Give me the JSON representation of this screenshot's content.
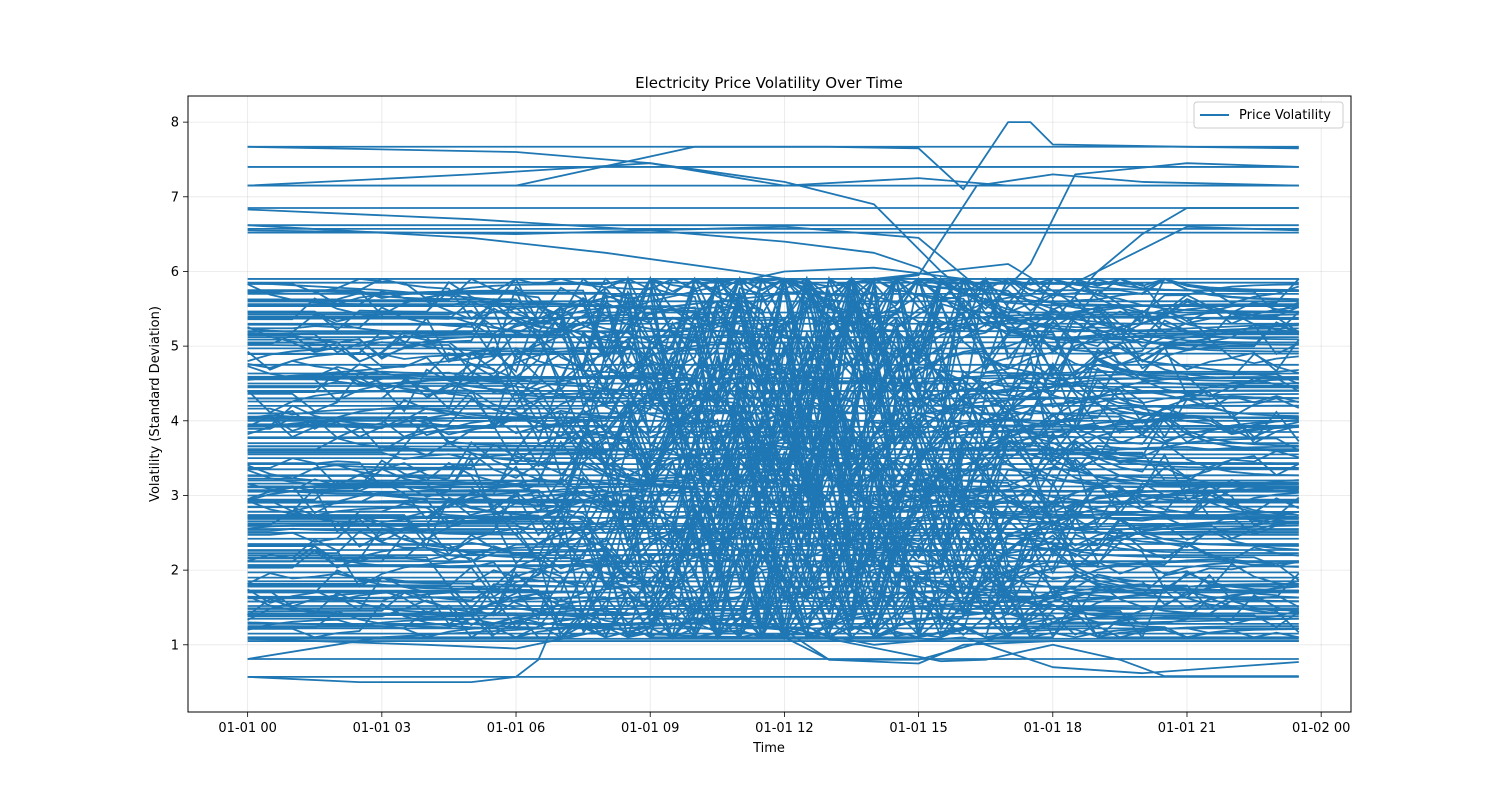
{
  "chart_data": {
    "type": "line",
    "title": "Electricity Price Volatility Over Time",
    "xlabel": "Time",
    "ylabel": "Volatility (Standard Deviation)",
    "x_start": "2023-01-01 00:00",
    "x_end": "2023-01-01 23:30",
    "xlim": [
      "2022-12-31 22:40",
      "2023-01-02 00:40"
    ],
    "ylim": [
      0.1,
      8.35
    ],
    "x_ticks": [
      "01-01 00",
      "01-01 03",
      "01-01 06",
      "01-01 09",
      "01-01 12",
      "01-01 15",
      "01-01 18",
      "01-01 21",
      "01-02 00"
    ],
    "y_ticks": [
      1,
      2,
      3,
      4,
      5,
      6,
      7,
      8
    ],
    "grid": true,
    "legend_position": "top-right",
    "series_color": "#1f77b4",
    "series": [
      {
        "name": "Price Volatility",
        "flat_levels": [
          0.57,
          0.81,
          1.05,
          1.08,
          1.15,
          1.22,
          1.28,
          1.35,
          1.42,
          1.48,
          1.52,
          1.58,
          1.63,
          1.7,
          1.78,
          1.85,
          1.9,
          1.97,
          2.05,
          2.12,
          2.2,
          2.27,
          2.35,
          2.42,
          2.5,
          2.55,
          2.62,
          2.7,
          2.78,
          2.85,
          2.92,
          3.0,
          3.05,
          3.12,
          3.2,
          3.27,
          3.35,
          3.42,
          3.5,
          3.55,
          3.62,
          3.7,
          3.78,
          3.85,
          3.92,
          4.0,
          4.1,
          4.2,
          4.3,
          4.4,
          4.5,
          4.57,
          4.75,
          4.9,
          4.97,
          5.05,
          5.12,
          5.2,
          5.3,
          5.38,
          5.45,
          5.6,
          5.7,
          5.85,
          5.9,
          6.52,
          6.57,
          6.62,
          6.85,
          7.15,
          7.4,
          7.67
        ],
        "excursions": [
          [
            [
              0,
              7.67
            ],
            [
              6,
              7.6
            ],
            [
              9,
              7.45
            ],
            [
              12,
              7.15
            ],
            [
              15,
              7.25
            ],
            [
              17,
              7.15
            ],
            [
              23.5,
              7.15
            ]
          ],
          [
            [
              0,
              7.15
            ],
            [
              6,
              7.15
            ],
            [
              10,
              7.67
            ],
            [
              13,
              7.67
            ],
            [
              15,
              7.65
            ],
            [
              16,
              7.1
            ],
            [
              17,
              8.0
            ],
            [
              17.5,
              8.0
            ],
            [
              18,
              7.7
            ],
            [
              21,
              7.67
            ],
            [
              23.5,
              7.65
            ]
          ],
          [
            [
              0,
              7.15
            ],
            [
              5,
              7.3
            ],
            [
              9,
              7.45
            ],
            [
              12,
              7.2
            ],
            [
              14,
              6.9
            ],
            [
              15.5,
              6.0
            ],
            [
              16.5,
              5.5
            ],
            [
              17.5,
              6.1
            ],
            [
              18.5,
              7.3
            ],
            [
              21,
              7.45
            ],
            [
              23.5,
              7.4
            ]
          ],
          [
            [
              0,
              6.83
            ],
            [
              5,
              6.7
            ],
            [
              9,
              6.55
            ],
            [
              12,
              6.4
            ],
            [
              14,
              6.25
            ],
            [
              15,
              6.05
            ],
            [
              16,
              5.7
            ],
            [
              17,
              5.45
            ],
            [
              18,
              5.7
            ],
            [
              19,
              6.0
            ],
            [
              20,
              6.5
            ],
            [
              21,
              6.85
            ],
            [
              23.5,
              6.85
            ]
          ],
          [
            [
              0,
              6.62
            ],
            [
              5,
              6.45
            ],
            [
              8,
              6.25
            ],
            [
              11,
              6.0
            ],
            [
              13,
              5.8
            ],
            [
              15,
              5.95
            ],
            [
              16.3,
              7.15
            ],
            [
              18,
              7.3
            ],
            [
              20,
              7.2
            ],
            [
              23.5,
              7.15
            ]
          ],
          [
            [
              0,
              6.55
            ],
            [
              6,
              6.5
            ],
            [
              12,
              6.6
            ],
            [
              15,
              6.45
            ],
            [
              16.5,
              5.7
            ],
            [
              17.5,
              5.0
            ],
            [
              19,
              6.0
            ],
            [
              21,
              6.6
            ],
            [
              23.5,
              6.55
            ]
          ],
          [
            [
              0,
              0.57
            ],
            [
              2.5,
              0.5
            ],
            [
              5,
              0.5
            ],
            [
              6,
              0.57
            ],
            [
              6.5,
              0.8
            ],
            [
              7,
              1.5
            ],
            [
              9,
              1.4
            ],
            [
              12,
              1.2
            ],
            [
              13,
              0.8
            ],
            [
              15,
              0.75
            ],
            [
              16,
              1.0
            ],
            [
              18,
              1.05
            ],
            [
              21,
              1.05
            ],
            [
              23.5,
              1.05
            ]
          ],
          [
            [
              0,
              0.81
            ],
            [
              3,
              1.1
            ],
            [
              6,
              1.2
            ],
            [
              9,
              1.3
            ],
            [
              12,
              1.1
            ],
            [
              13,
              0.8
            ],
            [
              15,
              0.8
            ],
            [
              16.5,
              1.05
            ],
            [
              18,
              1.3
            ],
            [
              20,
              1.3
            ],
            [
              23.5,
              1.35
            ]
          ],
          [
            [
              0,
              1.08
            ],
            [
              4,
              1.0
            ],
            [
              6,
              0.95
            ],
            [
              8,
              1.2
            ],
            [
              11,
              1.35
            ],
            [
              14,
              1.0
            ],
            [
              16,
              1.1
            ],
            [
              18,
              0.7
            ],
            [
              20,
              0.62
            ],
            [
              23.5,
              0.77
            ]
          ],
          [
            [
              0,
              4.55
            ],
            [
              3,
              4.7
            ],
            [
              6,
              4.9
            ],
            [
              9,
              5.6
            ],
            [
              12,
              6.0
            ],
            [
              14,
              6.05
            ],
            [
              16,
              5.9
            ],
            [
              18,
              5.5
            ],
            [
              20,
              4.8
            ],
            [
              23.5,
              4.55
            ]
          ],
          [
            [
              0,
              5.85
            ],
            [
              3,
              5.75
            ],
            [
              6,
              5.6
            ],
            [
              9,
              5.5
            ],
            [
              12,
              5.7
            ],
            [
              14,
              5.9
            ],
            [
              17,
              6.1
            ],
            [
              19.5,
              5.2
            ],
            [
              23.5,
              5.3
            ]
          ],
          [
            [
              0,
              1.3
            ],
            [
              3,
              1.25
            ],
            [
              6,
              1.3
            ],
            [
              8,
              1.25
            ],
            [
              10,
              1.3
            ],
            [
              12,
              1.2
            ],
            [
              15.5,
              0.78
            ],
            [
              16.5,
              0.8
            ],
            [
              18,
              1.0
            ],
            [
              19.5,
              0.8
            ],
            [
              20.5,
              0.58
            ],
            [
              23.5,
              0.58
            ]
          ]
        ],
        "dense_band": [
          1.1,
          5.9
        ]
      }
    ]
  }
}
